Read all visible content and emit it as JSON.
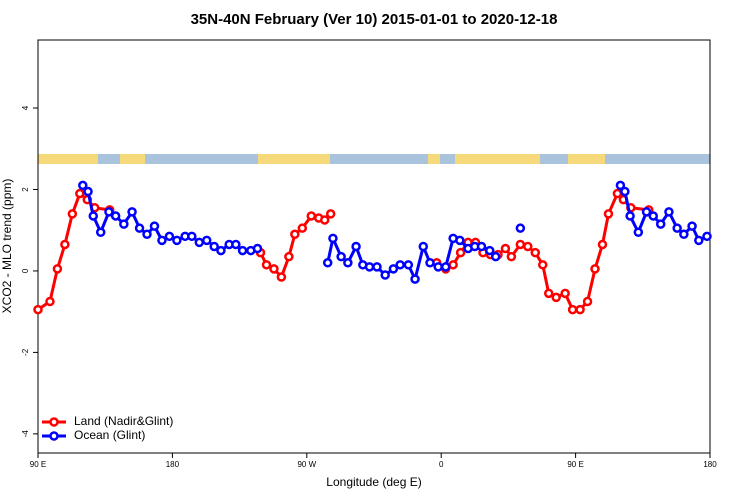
{
  "chart_data": {
    "type": "line",
    "title": "35N-40N February (Ver 10)   2015-01-01 to 2020-12-18",
    "x_label": "Longitude (deg E)",
    "y_label": "XCO2 - MLO trend (ppm)",
    "xlim": [
      90,
      540
    ],
    "ylim": [
      -4.47,
      5.67
    ],
    "xticks": [
      {
        "value": 90,
        "label": "90 E"
      },
      180,
      {
        "value": 270,
        "label": "90 W"
      },
      {
        "value": 360,
        "label": "0"
      },
      {
        "value": 450,
        "label": "90 E"
      },
      {
        "value": 540,
        "label": "180"
      }
    ],
    "yticks": [
      -4,
      -2,
      0,
      2,
      4
    ],
    "legend": "bottom-left",
    "series": [
      {
        "name": "Land (Nadir&Glint)",
        "color": "#ff0000",
        "x": [
          90,
          98,
          103,
          108,
          113,
          118,
          123,
          128,
          138,
          null,
          239,
          243,
          248,
          253,
          258,
          262,
          267,
          273,
          278,
          282,
          286,
          null,
          357,
          363,
          368,
          373,
          378,
          383,
          388,
          393,
          398,
          403,
          407,
          413,
          418,
          423,
          428,
          432,
          437,
          443,
          448,
          453,
          458,
          463,
          468,
          472,
          478,
          482,
          487,
          499
        ],
        "values": [
          -0.95,
          -0.75,
          0.05,
          0.65,
          1.4,
          1.9,
          1.75,
          1.55,
          1.5,
          null,
          0.45,
          0.15,
          0.05,
          -0.15,
          0.35,
          0.9,
          1.05,
          1.35,
          1.3,
          1.25,
          1.4,
          null,
          0.2,
          0.05,
          0.15,
          0.45,
          0.7,
          0.7,
          0.45,
          0.4,
          0.4,
          0.55,
          0.35,
          0.65,
          0.6,
          0.45,
          0.15,
          -0.55,
          -0.65,
          -0.55,
          -0.95,
          -0.95,
          -0.75,
          0.05,
          0.65,
          1.4,
          1.9,
          1.75,
          1.55,
          1.5
        ]
      },
      {
        "name": "Ocean (Glint)",
        "color": "#0000ff",
        "x": [
          120,
          123.5,
          127,
          132,
          137.5,
          142,
          147.5,
          153,
          158,
          163,
          168,
          173,
          178,
          183,
          188.5,
          193,
          198,
          203,
          208,
          212.5,
          218,
          222.5,
          227,
          232.5,
          237,
          null,
          284,
          287.5,
          293,
          297.5,
          303,
          307.5,
          312,
          317,
          322.5,
          328,
          332.5,
          338,
          342.5,
          348,
          352.5,
          358,
          363,
          368,
          372.5,
          378,
          382.5,
          387,
          392.5,
          396.5,
          null,
          413,
          null,
          480,
          483,
          486.5,
          492,
          497.5,
          502,
          507,
          512.5,
          518,
          522.5,
          528,
          532.5,
          538
        ],
        "values": [
          2.1,
          1.95,
          1.35,
          0.95,
          1.45,
          1.35,
          1.15,
          1.45,
          1.05,
          0.9,
          1.1,
          0.75,
          0.85,
          0.75,
          0.85,
          0.85,
          0.7,
          0.75,
          0.6,
          0.5,
          0.65,
          0.65,
          0.5,
          0.5,
          0.55,
          null,
          0.2,
          0.8,
          0.35,
          0.2,
          0.6,
          0.15,
          0.1,
          0.1,
          -0.1,
          0.05,
          0.15,
          0.15,
          -0.2,
          0.6,
          0.2,
          0.1,
          0.1,
          0.8,
          0.75,
          0.55,
          0.6,
          0.6,
          0.5,
          0.35,
          null,
          1.05,
          null,
          2.1,
          1.95,
          1.35,
          0.95,
          1.45,
          1.35,
          1.15,
          1.45,
          1.05,
          0.9,
          1.1,
          0.75,
          0.85
        ]
      }
    ]
  }
}
